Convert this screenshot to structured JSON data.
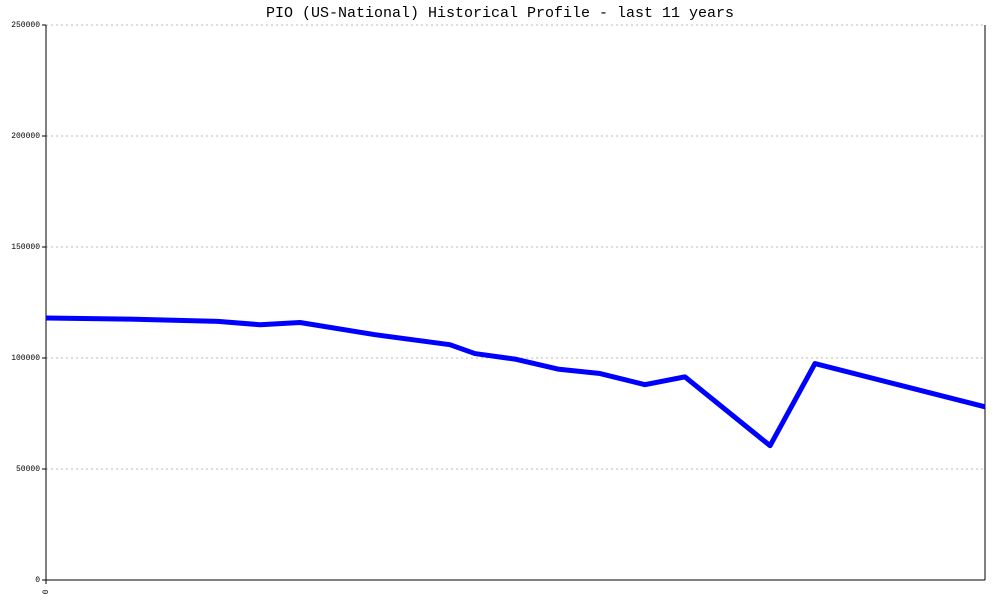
{
  "chart_data": {
    "type": "line",
    "title": "PIO (US-National) Historical Profile - last 11 years",
    "x": [
      0,
      359,
      735,
      915,
      1086,
      1407,
      1727,
      1834,
      2005,
      2189,
      2369,
      2561,
      2732,
      3096,
      3288,
      4015
    ],
    "series": [
      {
        "color": "#0000ff",
        "values": [
          118000,
          117500,
          116500,
          115000,
          116000,
          110500,
          106000,
          102000,
          99500,
          95000,
          93000,
          88000,
          91500,
          60500,
          97500,
          78000
        ]
      }
    ],
    "xlim": [
      0,
      4015
    ],
    "xticks": [
      0
    ],
    "ylim": [
      0,
      250000
    ],
    "yticks": [
      0,
      50000,
      100000,
      150000,
      200000,
      250000
    ],
    "grid": true
  }
}
